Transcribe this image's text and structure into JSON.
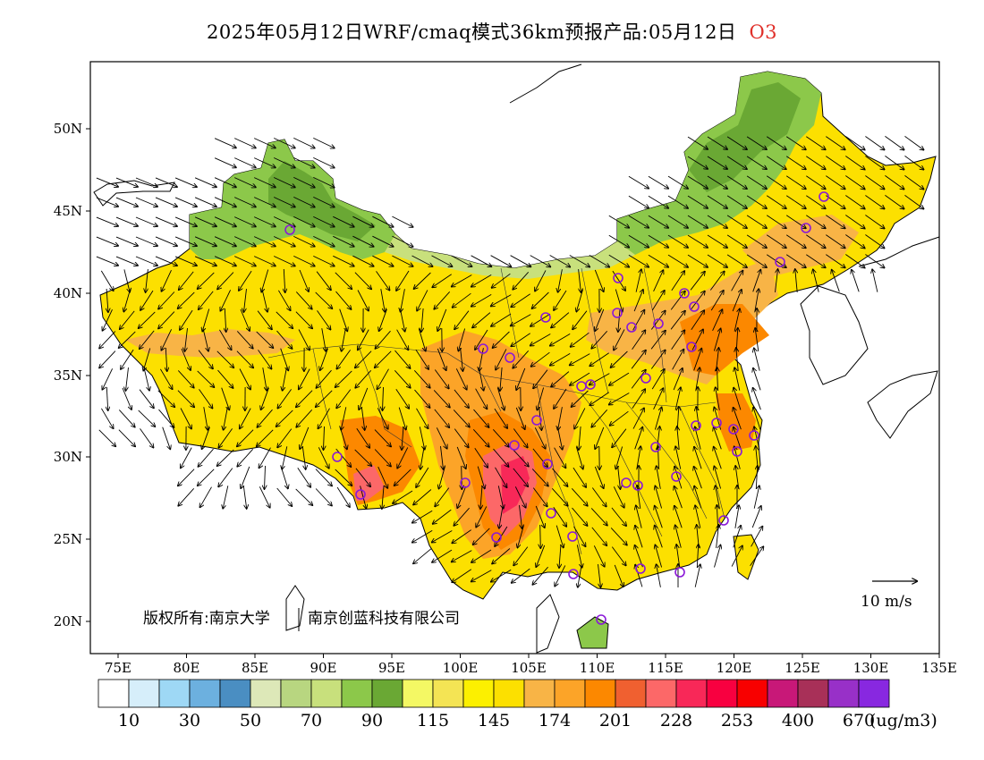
{
  "title": {
    "text": "2025年05月12日WRF/cmaq模式36km预报产品:05月12日",
    "species": "O3"
  },
  "map": {
    "lat_labels": [
      "50N",
      "45N",
      "40N",
      "35N",
      "30N",
      "25N",
      "20N"
    ],
    "lon_labels": [
      "75E",
      "80E",
      "85E",
      "90E",
      "95E",
      "100E",
      "105E",
      "110E",
      "115E",
      "120E",
      "125E",
      "130E",
      "135E"
    ],
    "copyright_text": "版权所有:南京大学",
    "copyright_text2": "南京创蓝科技有限公司",
    "wind_reference": "10 m/s",
    "stations": 40
  },
  "legend": {
    "colors": [
      "#ffffff",
      "#d6eefa",
      "#9ed8f5",
      "#6cb0df",
      "#4a8ec2",
      "#dde8b8",
      "#b8d680",
      "#c8e07c",
      "#8cc84a",
      "#6aa834",
      "#f4f864",
      "#f4e454",
      "#fcf000",
      "#fce000",
      "#f8b446",
      "#fca428",
      "#fc8800",
      "#f06030",
      "#fc6868",
      "#f82858",
      "#f80040",
      "#f80000",
      "#c81878",
      "#a83058",
      "#9830c8",
      "#8828e0"
    ],
    "labels": [
      "10",
      "30",
      "50",
      "70",
      "90",
      "115",
      "145",
      "174",
      "201",
      "228",
      "253",
      "400",
      "670"
    ],
    "unit": "(ug/m3)"
  }
}
